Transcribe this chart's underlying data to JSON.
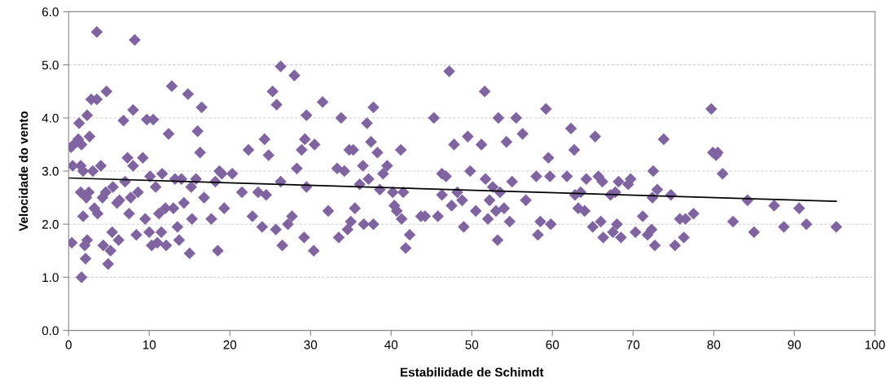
{
  "chart_data": {
    "type": "scatter",
    "xlabel": "Estabilidade de Schimdt",
    "ylabel": "Velocidade do vento",
    "xlim": [
      0,
      100
    ],
    "xticks": [
      0,
      10,
      20,
      30,
      40,
      50,
      60,
      70,
      80,
      90,
      100
    ],
    "ylim": [
      0,
      6
    ],
    "yticks": [
      {
        "value": 0,
        "label": "0.0"
      },
      {
        "value": 1,
        "label": "1.0"
      },
      {
        "value": 2,
        "label": "2.0"
      },
      {
        "value": 3,
        "label": "3.0"
      },
      {
        "value": 4,
        "label": "4.0"
      },
      {
        "value": 5,
        "label": "5.0"
      },
      {
        "value": 6,
        "label": "6.0"
      }
    ],
    "grid": "y",
    "series": [
      {
        "marker": "diamond",
        "color": "#8064a2",
        "x": [
          0.3,
          0.5,
          0.4,
          1,
          1.2,
          1.3,
          1.6,
          1.5,
          1.8,
          1.5,
          1.8,
          1.6,
          2,
          2.1,
          2.3,
          2.2,
          2.5,
          2.3,
          2.6,
          2.8,
          3,
          3.2,
          3.5,
          3.5,
          3.6,
          4,
          4.2,
          4.3,
          4.6,
          4.7,
          4.9,
          5.2,
          5.4,
          5.5,
          6.0,
          6.2,
          6.3,
          6.8,
          7,
          7.3,
          7.5,
          7.7,
          8,
          8.0,
          8.2,
          8.4,
          8.6,
          9.2,
          9.5,
          9.7,
          10,
          10.1,
          10.3,
          10.5,
          10.8,
          11,
          11.2,
          11.5,
          11.6,
          12.0,
          12.1,
          12.4,
          12.8,
          13.0,
          13.2,
          13.5,
          13.7,
          14.0,
          14.3,
          14.8,
          15,
          15.2,
          15.3,
          15.8,
          16.0,
          16.3,
          16.5,
          16.8,
          17.7,
          18.2,
          18.5,
          18.7,
          19.0,
          19.3,
          20.3,
          21.5,
          22.3,
          22.8,
          23.5,
          24.0,
          24.3,
          24.5,
          24.8,
          25.3,
          25.7,
          25.8,
          26.3,
          26.3,
          26.5,
          27.2,
          27.7,
          28.0,
          28.3,
          28.9,
          29.2,
          29.3,
          29.5,
          29.5,
          30.4,
          30.5,
          31.5,
          32.2,
          33.3,
          33.5,
          33.8,
          34.2,
          34.6,
          34.8,
          35.0,
          35.3,
          35.5,
          36.1,
          36.5,
          36.6,
          37.0,
          37.2,
          37.5,
          37.8,
          37.8,
          38.3,
          38.6,
          39.0,
          39.5,
          40.2,
          40.4,
          40.7,
          41.2,
          41.3,
          41.5,
          41.8,
          42.3,
          43.7,
          44.2,
          45.3,
          45.8,
          46.3,
          46.3,
          46.8,
          47.2,
          47.8,
          47.5,
          48.2,
          48.8,
          49.0,
          49.5,
          49.8,
          50.5,
          51.2,
          51.6,
          51.7,
          52.0,
          52.2,
          52.6,
          53.0,
          53.3,
          53.2,
          53.5,
          54.0,
          54.3,
          54.7,
          55.0,
          55.5,
          56.3,
          56.7,
          58.0,
          58.2,
          58.5,
          59.2,
          59.5,
          59.7,
          59.8,
          61.8,
          62.3,
          62.7,
          62.8,
          63.2,
          63.5,
          64.0,
          64.2,
          65.0,
          65.3,
          65.7,
          66.0,
          66.2,
          66.3,
          67.2,
          67.5,
          67.8,
          68.0,
          68.2,
          68.5,
          69.4,
          69.7,
          70.3,
          71.2,
          71.8,
          72.3,
          72.4,
          72.5,
          72.7,
          73.0,
          73.8,
          74.7,
          75.2,
          75.8,
          76.3,
          76.5,
          77.5,
          79.7,
          79.9,
          80.3,
          80.5,
          81.1,
          82.4,
          84.2,
          85.0,
          87.5,
          88.7,
          90.6,
          91.5,
          95.2
        ],
        "values": [
          3.45,
          3.1,
          1.65,
          3.55,
          3.6,
          3.9,
          3.5,
          3.1,
          3.0,
          2.6,
          2.15,
          1.0,
          1.6,
          1.35,
          1.7,
          2.5,
          2.6,
          4.05,
          3.65,
          4.35,
          3.0,
          2.3,
          4.35,
          5.62,
          2.2,
          3.1,
          2.5,
          1.6,
          2.6,
          4.5,
          1.25,
          1.5,
          1.85,
          2.7,
          2.4,
          1.7,
          2.45,
          3.95,
          2.8,
          3.25,
          2.2,
          2.5,
          4.15,
          3.1,
          5.47,
          1.8,
          2.6,
          3.25,
          2.1,
          3.97,
          1.85,
          2.9,
          1.6,
          3.97,
          2.7,
          1.65,
          2.2,
          1.85,
          2.95,
          2.3,
          1.6,
          3.7,
          4.6,
          2.3,
          2.85,
          1.95,
          1.7,
          2.85,
          2.4,
          4.45,
          1.45,
          2.7,
          2.1,
          2.85,
          3.75,
          3.35,
          4.2,
          2.5,
          2.1,
          2.8,
          1.5,
          3.0,
          2.95,
          2.3,
          2.95,
          2.6,
          3.4,
          2.15,
          2.6,
          1.95,
          3.6,
          2.55,
          3.3,
          4.5,
          1.9,
          4.25,
          4.97,
          2.8,
          1.6,
          2.0,
          2.15,
          4.8,
          3.05,
          3.4,
          1.75,
          3.6,
          4.05,
          2.7,
          1.5,
          3.5,
          4.3,
          2.25,
          3.05,
          1.75,
          4.0,
          3.0,
          1.9,
          3.4,
          2.05,
          3.4,
          2.3,
          2.75,
          3.1,
          2.0,
          3.9,
          2.85,
          3.55,
          4.2,
          2.0,
          3.35,
          2.65,
          2.95,
          3.1,
          2.6,
          2.35,
          2.25,
          3.4,
          2.1,
          2.6,
          1.55,
          1.8,
          2.15,
          2.15,
          4.0,
          2.15,
          2.95,
          2.55,
          2.9,
          4.88,
          3.5,
          2.35,
          2.6,
          2.45,
          1.95,
          3.65,
          3.0,
          2.25,
          3.5,
          4.5,
          2.85,
          2.1,
          2.45,
          2.7,
          2.25,
          4.0,
          1.7,
          2.6,
          2.3,
          3.55,
          2.05,
          2.8,
          4.0,
          3.7,
          2.45,
          2.9,
          1.8,
          2.05,
          4.17,
          3.25,
          2.9,
          2.0,
          2.9,
          3.8,
          3.4,
          2.55,
          2.3,
          2.6,
          2.25,
          2.85,
          1.95,
          3.65,
          2.9,
          2.05,
          2.8,
          1.75,
          2.55,
          1.85,
          2.6,
          2.0,
          2.8,
          1.75,
          2.75,
          2.85,
          1.85,
          2.15,
          1.8,
          1.9,
          2.5,
          3.0,
          1.6,
          2.65,
          3.6,
          2.55,
          1.6,
          2.1,
          1.75,
          2.1,
          2.2,
          4.17,
          3.35,
          3.3,
          3.35,
          2.95,
          2.05,
          2.45,
          1.85,
          2.35,
          1.95,
          2.3,
          2.0,
          1.95
        ]
      },
      {
        "type": "line",
        "color": "#000000",
        "x": [
          0,
          95.2
        ],
        "values": [
          2.87,
          2.43
        ]
      }
    ]
  }
}
